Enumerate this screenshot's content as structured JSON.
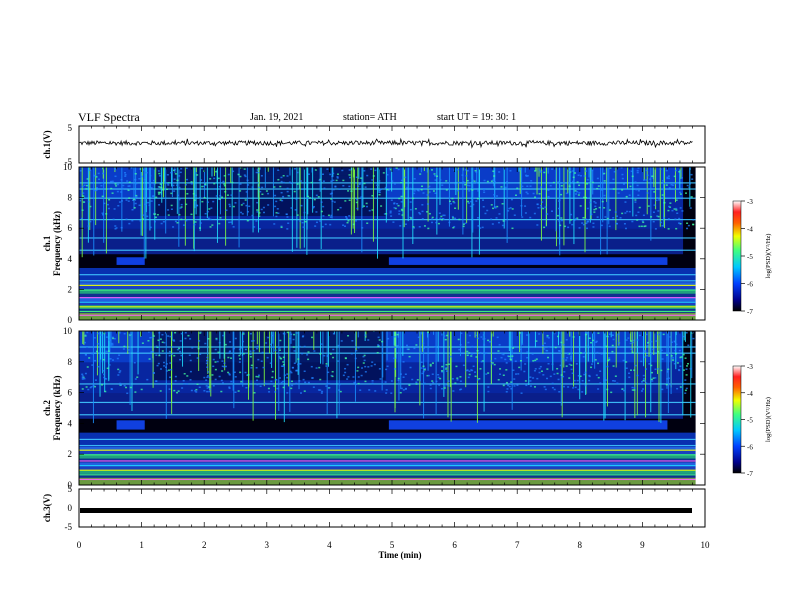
{
  "header": {
    "title": "VLF Spectra",
    "date": "Jan. 19, 2021",
    "station": "station= ATH",
    "start": "start  UT =   19: 30: 1"
  },
  "chart_data": [
    {
      "type": "line",
      "id": "ch1-waveform",
      "ylabel": "ch.1(V)",
      "ylim": [
        -5,
        5
      ],
      "yticks": [
        "5",
        "-5"
      ],
      "xlim": [
        0,
        10
      ],
      "series": [
        {
          "approx_level_v": 0.4,
          "approx_amplitude_v": 0.6,
          "color": "#000000"
        }
      ]
    },
    {
      "type": "heatmap",
      "id": "ch1-spectrogram",
      "ylabel_line1": "ch.1",
      "ylabel_line2": "Frequency (kHz)",
      "ylim": [
        0,
        10
      ],
      "yticks": [
        "0",
        "2",
        "4",
        "6",
        "8",
        "10"
      ],
      "xlim": [
        0,
        10
      ],
      "colorbar": {
        "label": "log(PSD)(V²/Hz)",
        "range": [
          -7,
          -3
        ],
        "ticks": [
          "-3",
          "-4",
          "-5",
          "-6",
          "-7"
        ]
      },
      "quiet_band": {
        "freq_khz": [
          3.6,
          4.1
        ],
        "intervals_min": [
          [
            0.6,
            1.05
          ],
          [
            4.95,
            9.4
          ]
        ]
      },
      "lines_khz": [
        0.35,
        0.6,
        0.9,
        1.2,
        1.5,
        2.0,
        2.3,
        2.6,
        3.0,
        4.6,
        5.4,
        6.6,
        8.0,
        8.6,
        9.0
      ]
    },
    {
      "type": "heatmap",
      "id": "ch2-spectrogram",
      "ylabel_line1": "ch.2",
      "ylabel_line2": "Frequency (kHz)",
      "ylim": [
        0,
        10
      ],
      "yticks": [
        "0",
        "2",
        "4",
        "6",
        "8",
        "10"
      ],
      "xlim": [
        0,
        10
      ],
      "colorbar": {
        "label": "log(PSD)(V²/Hz)",
        "range": [
          -7,
          -3
        ],
        "ticks": [
          "-3",
          "-4",
          "-5",
          "-6",
          "-7"
        ]
      },
      "quiet_band": {
        "freq_khz": [
          3.6,
          4.2
        ],
        "intervals_min": [
          [
            0.6,
            1.05
          ],
          [
            4.95,
            9.4
          ]
        ]
      },
      "lines_khz": [
        0.4,
        0.7,
        1.0,
        1.3,
        1.6,
        2.0,
        2.3,
        2.6,
        3.0,
        4.6,
        5.4,
        6.6,
        8.6,
        9.0
      ]
    },
    {
      "type": "line",
      "id": "ch3-waveform",
      "ylabel": "ch.3(V)",
      "ylim": [
        -5,
        5
      ],
      "yticks": [
        "5",
        "0",
        "-5"
      ],
      "xlim": [
        0,
        10
      ],
      "xlabel": "Time  (min)",
      "xticks": [
        "0",
        "1",
        "2",
        "3",
        "4",
        "5",
        "6",
        "7",
        "8",
        "9",
        "10"
      ],
      "series": [
        {
          "approx_level_v": -1.0,
          "color": "#000000"
        }
      ]
    }
  ],
  "colors": {
    "cmap": [
      "#0a0a4a",
      "#000aa0",
      "#0040ff",
      "#00a0ff",
      "#00e0c0",
      "#40ff40",
      "#f0ff00",
      "#ffa000",
      "#ff2000",
      "#ff9090",
      "#ffffff"
    ]
  }
}
